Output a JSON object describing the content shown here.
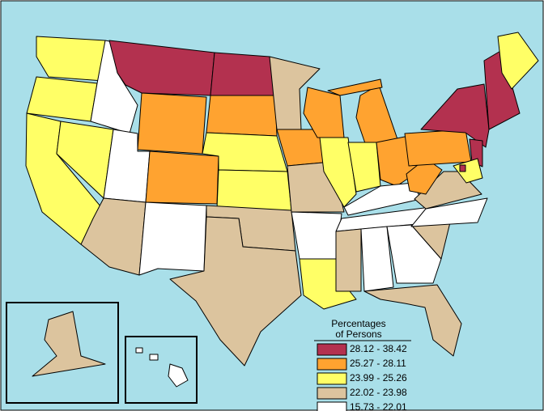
{
  "legend": {
    "title_lines": [
      "Percentages",
      "of Persons"
    ],
    "entries": [
      {
        "label": "28.12 - 38.42",
        "color": "#b3314f"
      },
      {
        "label": "25.27 - 28.11",
        "color": "#ffa330"
      },
      {
        "label": "23.99 - 25.26",
        "color": "#ffff66"
      },
      {
        "label": "22.02 - 23.98",
        "color": "#dcc49e"
      },
      {
        "label": "15.73 - 22.01",
        "color": "#ffffff"
      }
    ]
  }
}
